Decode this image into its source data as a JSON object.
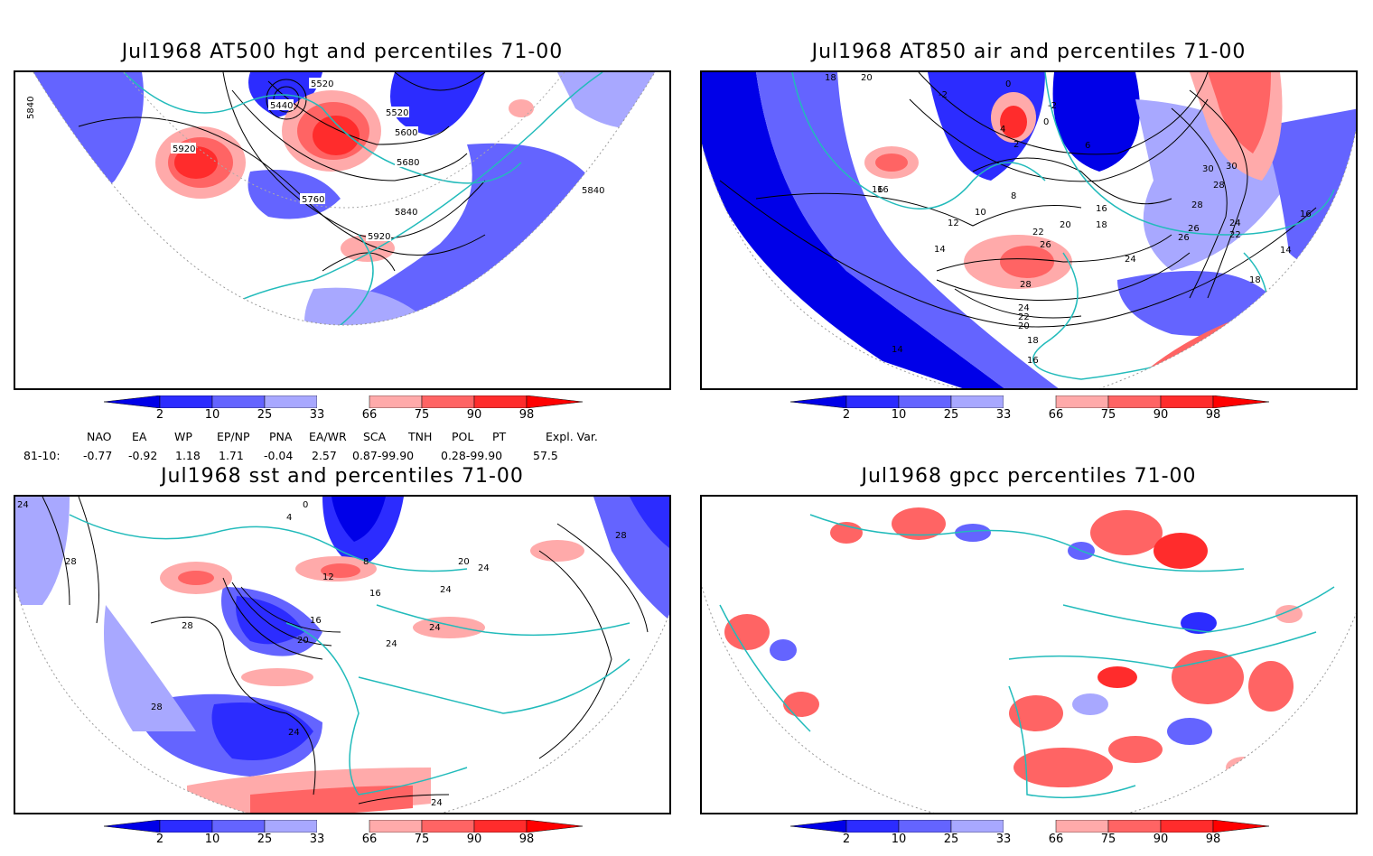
{
  "panels": [
    {
      "title": "Jul1968 AT500 hgt and percentiles 71-00",
      "contour_labels": [
        "5840",
        "5520",
        "5440",
        "5520",
        "5600",
        "5680",
        "5920",
        "5760",
        "5840",
        "5920",
        "5840"
      ]
    },
    {
      "title": "Jul1968 AT850 air and percentiles 71-00",
      "contour_labels": [
        "18",
        "20",
        "-2",
        "0",
        "-2",
        "4",
        "0",
        "2",
        "6",
        "8",
        "10",
        "12",
        "14",
        "16",
        "16",
        "18",
        "20",
        "22",
        "24",
        "26",
        "28",
        "28",
        "30",
        "30",
        "28",
        "26",
        "26",
        "24",
        "22",
        "24",
        "22",
        "20",
        "18",
        "16",
        "14",
        "16",
        "14",
        "16",
        "18"
      ]
    },
    {
      "title": "Jul1968 sst and percentiles 71-00",
      "contour_labels": [
        "24",
        "28",
        "0",
        "4",
        "8",
        "12",
        "16",
        "20",
        "24",
        "28",
        "28",
        "28",
        "16",
        "20",
        "24",
        "24",
        "24",
        "24",
        "24"
      ]
    },
    {
      "title": "Jul1968 gpcc percentiles 71-00",
      "contour_labels": []
    }
  ],
  "colorbar": {
    "ticks": [
      "2",
      "10",
      "25",
      "33",
      "66",
      "75",
      "90",
      "98"
    ],
    "colors": [
      "#0000e8",
      "#2c2cff",
      "#6464ff",
      "#a8a8ff",
      "#ffffff",
      "#ffaaaa",
      "#ff6464",
      "#ff2c2c",
      "#ff0000"
    ]
  },
  "indices": {
    "headers": [
      "NAO",
      "EA",
      "WP",
      "EP/NP",
      "PNA",
      "EA/WR",
      "SCA",
      "TNH",
      "POL",
      "PT",
      "Expl. Var."
    ],
    "row_label": "81-10:",
    "values": [
      "-0.77",
      "-0.92",
      "1.18",
      "1.71",
      "-0.04",
      "2.57",
      "0.87-99.90",
      "",
      "0.28-99.90",
      "",
      "57.5"
    ]
  }
}
